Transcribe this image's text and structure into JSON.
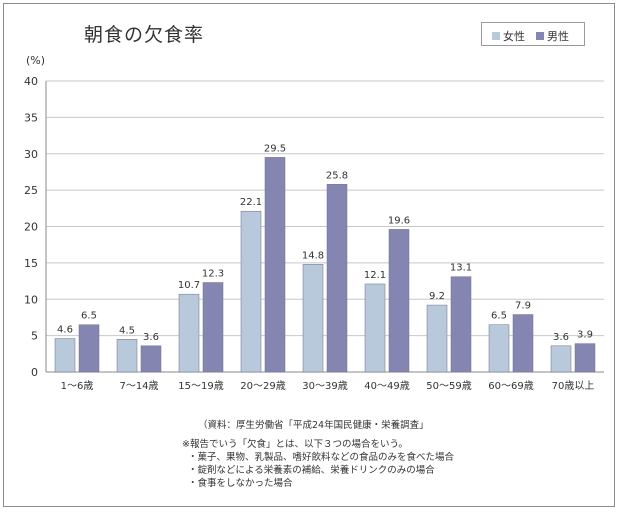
{
  "chart_data": {
    "type": "bar",
    "title": "朝食の欠食率",
    "ylabel": "(%)",
    "ylim": [
      0,
      40
    ],
    "yticks": [
      0,
      5,
      10,
      15,
      20,
      25,
      30,
      35,
      40
    ],
    "categories": [
      "1～6歳",
      "7～14歳",
      "15～19歳",
      "20～29歳",
      "30～39歳",
      "40～49歳",
      "50～59歳",
      "60～69歳",
      "70歳以上"
    ],
    "series": [
      {
        "name": "女性",
        "color": "#b7c9db",
        "values": [
          4.6,
          4.5,
          10.7,
          22.1,
          14.8,
          12.1,
          9.2,
          6.5,
          3.6
        ]
      },
      {
        "name": "男性",
        "color": "#8585b2",
        "values": [
          6.5,
          3.6,
          12.3,
          29.5,
          25.8,
          19.6,
          13.1,
          7.9,
          3.9
        ]
      }
    ],
    "grid": true,
    "legend": "top-right"
  },
  "source": "（資料：厚生労働省「平成24年国民健康・栄養調査」",
  "notes": [
    "※報告でいう「欠食」とは、以下３つの場合をいう。",
    "・菓子、果物、乳製品、嗜好飲料などの食品のみを食べた場合",
    "・錠剤などによる栄養素の補給、栄養ドリンクのみの場合",
    "・食事をしなかった場合"
  ]
}
